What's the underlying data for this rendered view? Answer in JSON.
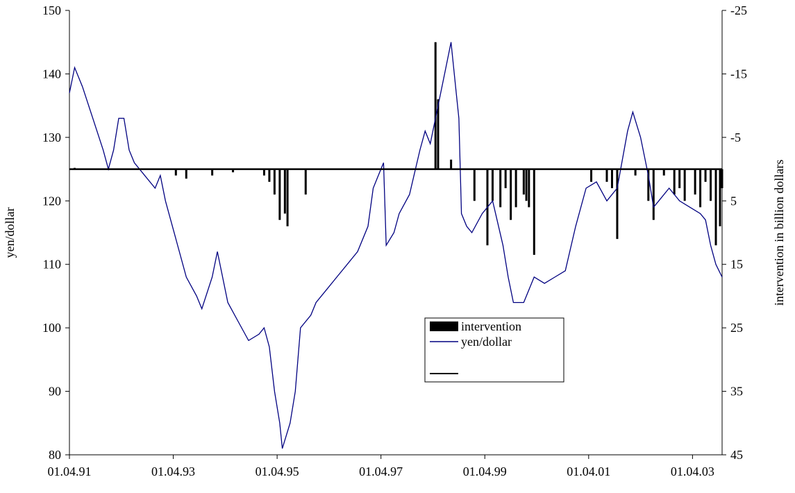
{
  "chart_data": {
    "type": "combo",
    "ylabel": "yen/dollar",
    "y2label": "intervention in billion dollars",
    "xlim": [
      1991.25,
      2003.82
    ],
    "xticks": [
      {
        "value": 1991.25,
        "label": "01.04.91"
      },
      {
        "value": 1993.25,
        "label": "01.04.93"
      },
      {
        "value": 1995.25,
        "label": "01.04.95"
      },
      {
        "value": 1997.25,
        "label": "01.04.97"
      },
      {
        "value": 1999.25,
        "label": "01.04.99"
      },
      {
        "value": 2001.25,
        "label": "01.04.01"
      },
      {
        "value": 2003.25,
        "label": "01.04.03"
      }
    ],
    "ylim": [
      80,
      150
    ],
    "yticks": [
      80,
      90,
      100,
      110,
      120,
      130,
      140,
      150
    ],
    "y2lim": [
      45,
      -25
    ],
    "y2ticks": [
      -25,
      -15,
      -5,
      5,
      15,
      25,
      35,
      45
    ],
    "series": [
      {
        "name": "intervention",
        "type": "bar",
        "axis": "y2",
        "color": "#000000",
        "x": [
          1991.35,
          1993.3,
          1993.5,
          1994.0,
          1994.4,
          1995.0,
          1995.1,
          1995.2,
          1995.3,
          1995.4,
          1995.45,
          1995.8,
          1998.3,
          1998.35,
          1998.6,
          1999.05,
          1999.3,
          1999.4,
          1999.55,
          1999.65,
          1999.75,
          1999.85,
          2000.0,
          2000.05,
          2000.1,
          2000.2,
          2001.3,
          2001.6,
          2001.7,
          2001.8,
          2002.15,
          2002.4,
          2002.5,
          2002.7,
          2002.9,
          2003.0,
          2003.1,
          2003.3,
          2003.4,
          2003.5,
          2003.6,
          2003.7,
          2003.78,
          2003.82
        ],
        "values": [
          -0.2,
          1,
          1.5,
          1,
          0.5,
          1,
          2,
          4,
          8,
          7,
          9,
          4,
          -20,
          -11,
          -1.5,
          5,
          12,
          5,
          6,
          3,
          8,
          6,
          4,
          5,
          6,
          13.5,
          2,
          2,
          3,
          11,
          1,
          5,
          8,
          1,
          4,
          3,
          5,
          4,
          6,
          2,
          5,
          12,
          9,
          3
        ]
      },
      {
        "name": "yen/dollar",
        "type": "line",
        "color": "#000080",
        "x": [
          1991.25,
          1991.35,
          1991.5,
          1991.7,
          1991.9,
          1992.0,
          1992.1,
          1992.2,
          1992.3,
          1992.4,
          1992.5,
          1992.7,
          1992.9,
          1993.0,
          1993.1,
          1993.3,
          1993.5,
          1993.7,
          1993.8,
          1994.0,
          1994.1,
          1994.3,
          1994.5,
          1994.7,
          1994.9,
          1995.0,
          1995.1,
          1995.2,
          1995.3,
          1995.35,
          1995.5,
          1995.6,
          1995.7,
          1995.9,
          1996.0,
          1996.2,
          1996.4,
          1996.6,
          1996.8,
          1997.0,
          1997.1,
          1997.2,
          1997.3,
          1997.35,
          1997.5,
          1997.6,
          1997.8,
          1998.0,
          1998.1,
          1998.2,
          1998.4,
          1998.5,
          1998.6,
          1998.7,
          1998.75,
          1998.8,
          1998.9,
          1999.0,
          1999.2,
          1999.4,
          1999.6,
          1999.7,
          1999.8,
          2000.0,
          2000.2,
          2000.4,
          2000.6,
          2000.8,
          2001.0,
          2001.2,
          2001.4,
          2001.6,
          2001.8,
          2002.0,
          2002.1,
          2002.25,
          2002.4,
          2002.5,
          2002.6,
          2002.8,
          2003.0,
          2003.2,
          2003.4,
          2003.5,
          2003.6,
          2003.7,
          2003.82
        ],
        "values": [
          137,
          141,
          138,
          133,
          128,
          125,
          128,
          133,
          133,
          128,
          126,
          124,
          122,
          124,
          120,
          114,
          108,
          105,
          103,
          108,
          112,
          104,
          101,
          98,
          99,
          100,
          97,
          90,
          85,
          81,
          85,
          90,
          100,
          102,
          104,
          106,
          108,
          110,
          112,
          116,
          122,
          124,
          126,
          113,
          115,
          118,
          121,
          128,
          131,
          129,
          137,
          141,
          145,
          137,
          133,
          118,
          116,
          115,
          118,
          120,
          113,
          108,
          104,
          104,
          108,
          107,
          108,
          109,
          116,
          122,
          123,
          120,
          122,
          131,
          134,
          130,
          124,
          119,
          120,
          122,
          120,
          119,
          118,
          117,
          113,
          110,
          108
        ]
      }
    ]
  }
}
